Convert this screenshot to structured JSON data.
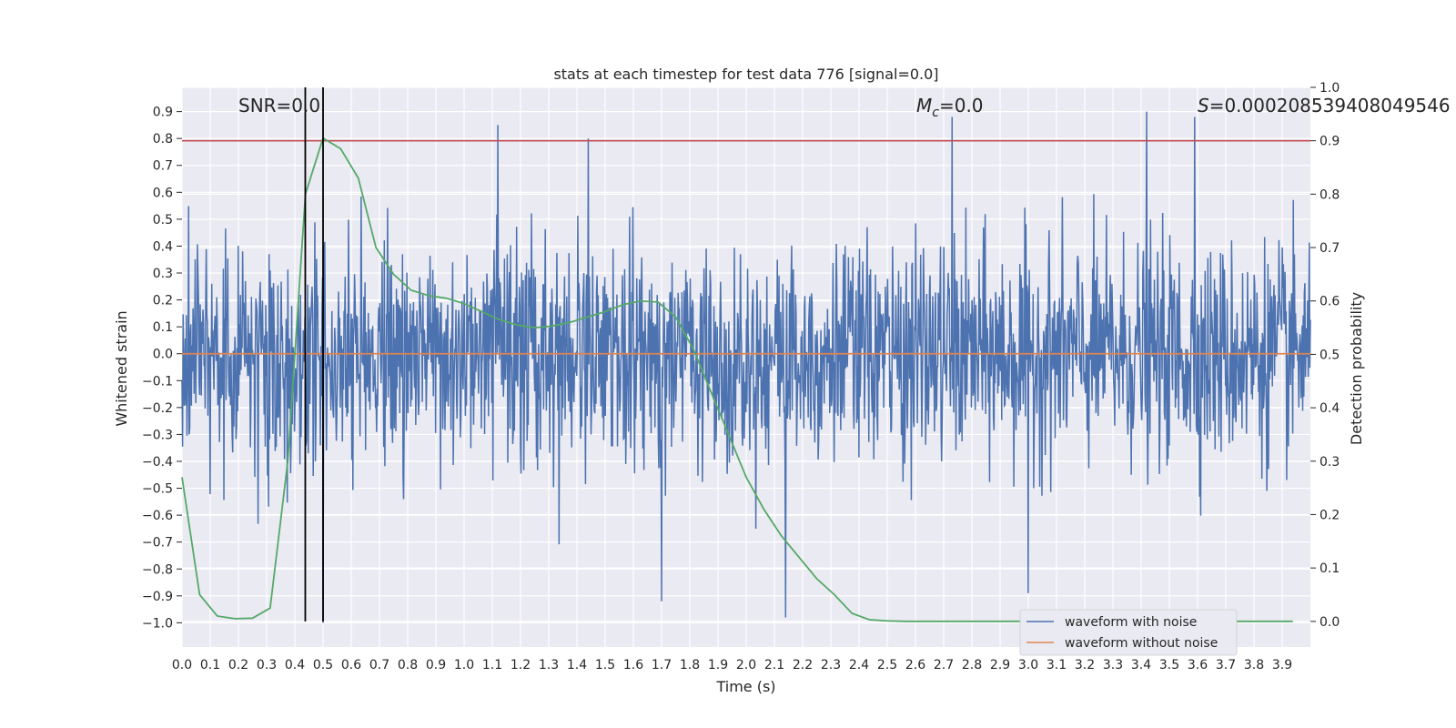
{
  "chart_data": {
    "type": "line",
    "title": "stats at each timestep for test data 776 [signal=0.0]",
    "xlabel": "Time (s)",
    "ylabel_left": "Whitened strain",
    "ylabel_right": "Detection probability",
    "xlim": [
      0.0,
      4.0
    ],
    "ylim_left": [
      -1.09,
      0.99
    ],
    "ylim_right": [
      -0.048,
      1.0
    ],
    "x_ticks": [
      "0.0",
      "0.1",
      "0.2",
      "0.3",
      "0.4",
      "0.5",
      "0.6",
      "0.7",
      "0.8",
      "0.9",
      "1.0",
      "1.1",
      "1.2",
      "1.3",
      "1.4",
      "1.5",
      "1.6",
      "1.7",
      "1.8",
      "1.9",
      "2.0",
      "2.1",
      "2.2",
      "2.3",
      "2.4",
      "2.5",
      "2.6",
      "2.7",
      "2.8",
      "2.9",
      "3.0",
      "3.1",
      "3.2",
      "3.3",
      "3.4",
      "3.5",
      "3.6",
      "3.7",
      "3.8",
      "3.9"
    ],
    "y_left_ticks": [
      "−1.0",
      "−0.9",
      "−0.8",
      "−0.7",
      "−0.6",
      "−0.5",
      "−0.4",
      "−0.3",
      "−0.2",
      "−0.1",
      "0.0",
      "0.1",
      "0.2",
      "0.3",
      "0.4",
      "0.5",
      "0.6",
      "0.7",
      "0.8",
      "0.9"
    ],
    "y_right_ticks": [
      "0.0",
      "0.1",
      "0.2",
      "0.3",
      "0.4",
      "0.5",
      "0.6",
      "0.7",
      "0.8",
      "0.9",
      "1.0"
    ],
    "grid": true,
    "legend_position": "bottom-right",
    "annotations": {
      "snr": "SNR=0.0",
      "mc_symbol": "M",
      "mc_sub": "c",
      "mc_value": "=0.0",
      "s_symbol": "S",
      "s_value": "=0.00020853940804954​6"
    },
    "vlines_x": [
      0.437,
      0.5
    ],
    "threshold_line": {
      "axis": "right",
      "y": 0.9,
      "color": "#c44e52"
    },
    "series": [
      {
        "name": "waveform with noise",
        "axis": "left",
        "color": "#4c72b0",
        "kind": "noise",
        "std": 0.2,
        "samples": 2048,
        "x_range": [
          0.0,
          4.0
        ],
        "notable_peaks": [
          {
            "x": 1.12,
            "y": 0.85
          },
          {
            "x": 1.44,
            "y": 0.8
          },
          {
            "x": 2.73,
            "y": 0.88
          },
          {
            "x": 3.42,
            "y": 0.9
          },
          {
            "x": 3.59,
            "y": 0.88
          },
          {
            "x": 0.5,
            "y": -1.0
          },
          {
            "x": 2.14,
            "y": -0.98
          },
          {
            "x": 3.0,
            "y": -0.89
          },
          {
            "x": 1.7,
            "y": -0.92
          }
        ]
      },
      {
        "name": "waveform without noise",
        "axis": "left",
        "color": "#dd8452",
        "x": [
          0.0,
          4.0
        ],
        "y": [
          0.0,
          0.0
        ]
      },
      {
        "name": "",
        "axis": "right",
        "color": "#55a868",
        "x": [
          0.0,
          0.0625,
          0.125,
          0.1875,
          0.25,
          0.3125,
          0.375,
          0.4375,
          0.5,
          0.5625,
          0.625,
          0.6875,
          0.75,
          0.8125,
          0.875,
          0.9375,
          1.0,
          1.0625,
          1.125,
          1.1875,
          1.25,
          1.3125,
          1.375,
          1.4375,
          1.5,
          1.5625,
          1.625,
          1.6875,
          1.75,
          1.8125,
          1.875,
          1.9375,
          2.0,
          2.0625,
          2.125,
          2.1875,
          2.25,
          2.3125,
          2.375,
          2.4375,
          2.5,
          2.5625,
          2.625,
          2.6875,
          2.75,
          2.8125,
          2.875,
          2.9375,
          3.0,
          3.0625,
          3.125,
          3.1875,
          3.25,
          3.3125,
          3.375,
          3.4375,
          3.5,
          3.5625,
          3.625,
          3.6875,
          3.75,
          3.8125,
          3.875,
          3.9375
        ],
        "y": [
          0.27,
          0.05,
          0.01,
          0.005,
          0.006,
          0.025,
          0.3,
          0.8,
          0.905,
          0.885,
          0.83,
          0.7,
          0.65,
          0.62,
          0.61,
          0.605,
          0.595,
          0.58,
          0.565,
          0.555,
          0.55,
          0.553,
          0.56,
          0.57,
          0.58,
          0.593,
          0.6,
          0.598,
          0.57,
          0.51,
          0.43,
          0.35,
          0.27,
          0.21,
          0.16,
          0.12,
          0.08,
          0.05,
          0.015,
          0.003,
          0.001,
          0.0,
          0.0,
          0.0,
          0.0,
          0.0,
          0.0,
          0.0,
          0.0,
          0.0,
          0.0,
          0.0,
          0.0,
          0.0,
          0.0,
          0.0,
          0.0,
          0.0,
          0.0,
          0.0,
          0.0,
          0.0,
          0.0,
          0.0
        ]
      }
    ]
  }
}
